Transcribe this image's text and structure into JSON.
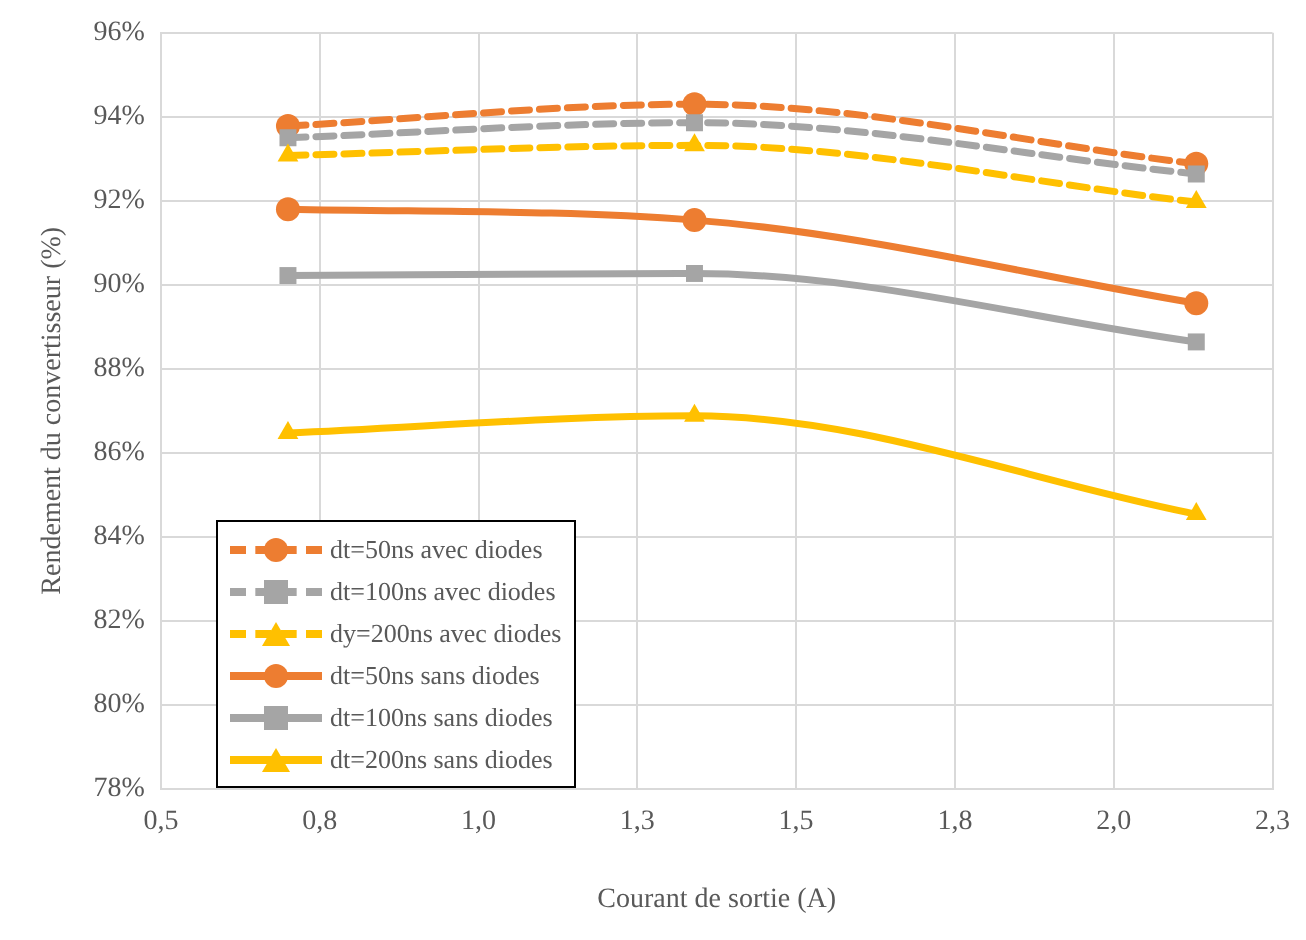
{
  "chart_data": {
    "type": "line",
    "xlabel": "Courant de sortie (A)",
    "ylabel": "Rendement du convertisseur (%)",
    "x": [
      0.7,
      1.34,
      2.13
    ],
    "series": [
      {
        "name": "dt=50ns avec diodes",
        "color": "#ed7d31",
        "marker": "circle",
        "line_style": "dashed",
        "values": [
          93.78,
          94.3,
          92.88
        ]
      },
      {
        "name": "dt=100ns avec diodes",
        "color": "#a5a5a5",
        "marker": "square",
        "line_style": "dashed",
        "values": [
          93.5,
          93.86,
          92.64
        ]
      },
      {
        "name": "dy=200ns avec diodes",
        "color": "#ffc000",
        "marker": "triangle",
        "line_style": "dashed",
        "values": [
          93.08,
          93.32,
          91.97
        ]
      },
      {
        "name": "dt=50ns sans diodes",
        "color": "#ed7d31",
        "marker": "circle",
        "line_style": "solid",
        "values": [
          91.8,
          91.54,
          89.56
        ]
      },
      {
        "name": "dt=100ns sans diodes",
        "color": "#a5a5a5",
        "marker": "square",
        "line_style": "solid",
        "values": [
          90.22,
          90.27,
          88.64
        ]
      },
      {
        "name": "dt=200ns sans diodes",
        "color": "#ffc000",
        "marker": "triangle",
        "line_style": "solid",
        "values": [
          86.47,
          86.88,
          84.54
        ]
      }
    ],
    "xlim": [
      0.5,
      2.25
    ],
    "xticks": [
      {
        "value": 0.5,
        "label": "0,5"
      },
      {
        "value": 0.75,
        "label": "0,8"
      },
      {
        "value": 1.0,
        "label": "1,0"
      },
      {
        "value": 1.25,
        "label": "1,3"
      },
      {
        "value": 1.5,
        "label": "1,5"
      },
      {
        "value": 1.75,
        "label": "1,8"
      },
      {
        "value": 2.0,
        "label": "2,0"
      },
      {
        "value": 2.25,
        "label": "2,3"
      }
    ],
    "ylim": [
      78,
      96
    ],
    "yticks": [
      {
        "value": 78,
        "label": "78%"
      },
      {
        "value": 80,
        "label": "80%"
      },
      {
        "value": 82,
        "label": "82%"
      },
      {
        "value": 84,
        "label": "84%"
      },
      {
        "value": 86,
        "label": "86%"
      },
      {
        "value": 88,
        "label": "88%"
      },
      {
        "value": 90,
        "label": "90%"
      },
      {
        "value": 92,
        "label": "92%"
      },
      {
        "value": 94,
        "label": "94%"
      },
      {
        "value": 96,
        "label": "96%"
      }
    ],
    "grid": true,
    "legend": "bottom left"
  }
}
